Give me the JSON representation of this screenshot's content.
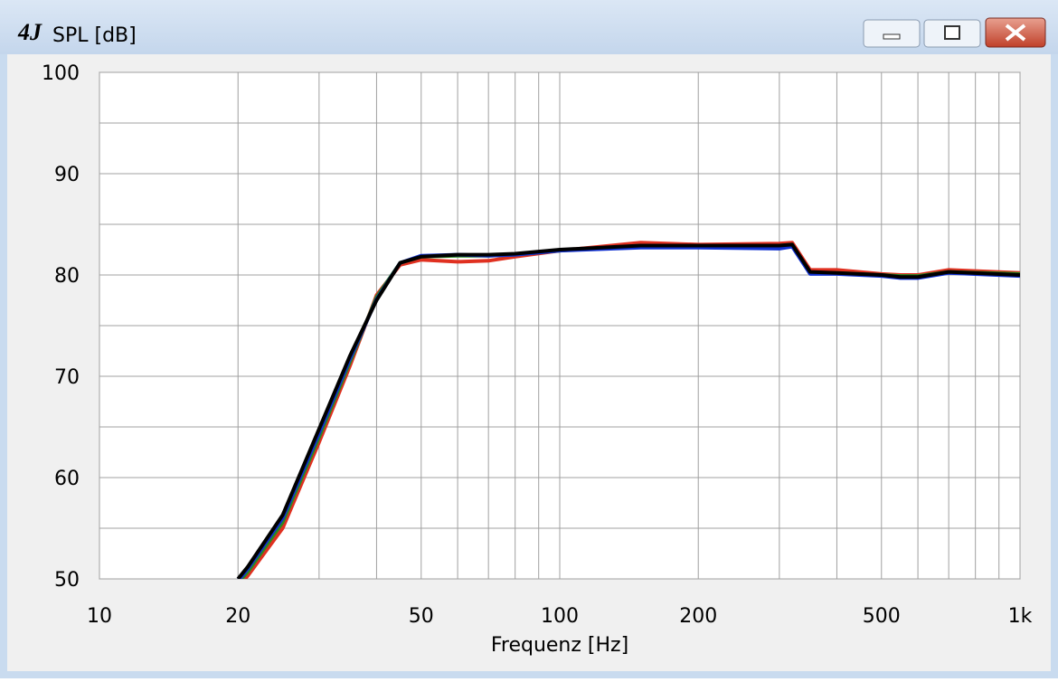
{
  "chart_data": {
    "type": "line",
    "title": "SPL [dB]",
    "xlabel": "Frequenz [Hz]",
    "xscale": "log",
    "grid": true,
    "xlim": [
      10,
      1000
    ],
    "xticks": [
      10,
      20,
      50,
      100,
      200,
      500,
      {
        "value": 1000,
        "label": "1k"
      }
    ],
    "xminorticks": [
      30,
      40,
      60,
      70,
      80,
      90,
      300,
      400,
      600,
      700,
      800,
      900
    ],
    "ylim": [
      50,
      100
    ],
    "yticks": [
      50,
      60,
      70,
      80,
      90,
      100
    ],
    "yminorticks": [
      55,
      65,
      75,
      85,
      95
    ],
    "x": [
      20,
      21,
      25,
      30,
      35,
      40,
      45,
      50,
      60,
      70,
      80,
      100,
      150,
      200,
      300,
      320,
      350,
      400,
      500,
      550,
      600,
      700,
      1000
    ],
    "series": [
      {
        "name": "red",
        "color": "#e03020",
        "values": [
          49.3,
          50.3,
          55,
          63.5,
          71,
          78,
          81,
          81.5,
          81.3,
          81.4,
          81.8,
          82.4,
          83.2,
          83,
          83.1,
          83.2,
          80.5,
          80.5,
          80.1,
          80,
          80,
          80.5,
          80.2
        ]
      },
      {
        "name": "green",
        "color": "#2a8a20",
        "values": [
          49.6,
          50.7,
          55.6,
          64,
          71.4,
          77.8,
          81.2,
          81.8,
          81.9,
          81.9,
          82,
          82.4,
          82.9,
          82.9,
          82.9,
          83,
          80.2,
          80.2,
          80,
          79.9,
          79.9,
          80.3,
          80.1
        ]
      },
      {
        "name": "blue",
        "color": "#1030d0",
        "values": [
          49.8,
          51,
          56,
          64.4,
          71.7,
          77.6,
          81.2,
          81.9,
          82,
          81.9,
          82,
          82.4,
          82.7,
          82.7,
          82.6,
          82.8,
          80.1,
          80.1,
          79.9,
          79.7,
          79.7,
          80.2,
          79.9
        ]
      },
      {
        "name": "black",
        "color": "#000000",
        "values": [
          50,
          51.2,
          56.3,
          64.8,
          72,
          77.5,
          81.2,
          81.8,
          82,
          82,
          82.1,
          82.5,
          82.9,
          82.9,
          82.9,
          83,
          80.3,
          80.2,
          80,
          79.8,
          79.8,
          80.3,
          80
        ]
      }
    ]
  }
}
